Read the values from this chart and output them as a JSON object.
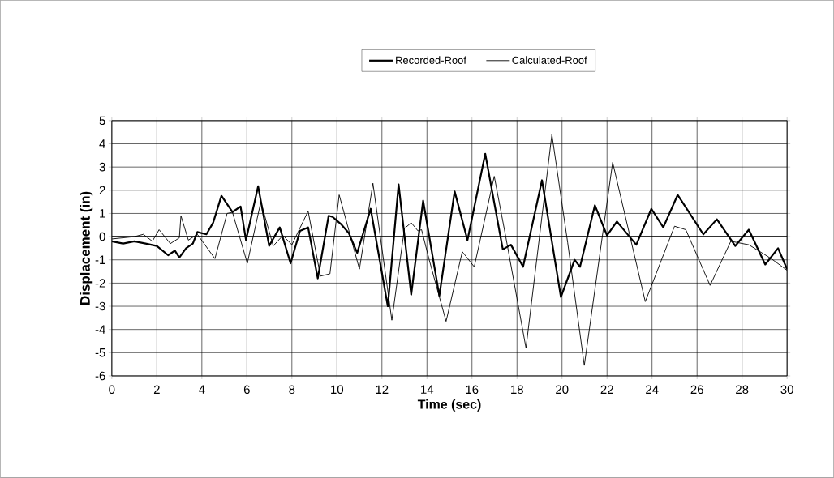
{
  "chart_data": {
    "type": "line",
    "xlabel": "Time (sec)",
    "ylabel": "Displacement (in)",
    "xlim": [
      0,
      30
    ],
    "xticks": [
      0,
      2,
      4,
      6,
      8,
      10,
      12,
      14,
      16,
      18,
      20,
      22,
      24,
      26,
      28,
      30
    ],
    "ylim": [
      -6,
      5
    ],
    "yticks": [
      -6,
      -5,
      -4,
      -3,
      -2,
      -1,
      0,
      1,
      2,
      3,
      4,
      5
    ],
    "grid": true,
    "legend": "top",
    "marker": "none",
    "line_style": "solid",
    "ref_lines": [
      {
        "axis": "y",
        "value": 0,
        "color": "#000000"
      }
    ],
    "series": [
      {
        "name": "Recorded-Roof",
        "color": "#000000",
        "x": [
          0,
          0.5,
          1,
          1.5,
          2,
          2.5,
          2.8,
          3,
          3.3,
          3.6,
          3.8,
          4.2,
          4.5,
          4.87,
          5.36,
          5.72,
          5.96,
          6.5,
          6.99,
          7.46,
          7.94,
          8.36,
          8.72,
          9.15,
          9.63,
          9.81,
          10.17,
          10.53,
          10.9,
          11.5,
          12.26,
          12.74,
          13.3,
          13.83,
          14.55,
          15.23,
          15.8,
          16.59,
          17.37,
          17.73,
          18.27,
          19.11,
          19.95,
          20.56,
          20.8,
          21.46,
          22.0,
          22.44,
          23.3,
          23.97,
          24.5,
          25.14,
          26.28,
          26.88,
          27.7,
          28.3,
          29.03,
          29.6,
          30
        ],
        "values": [
          -0.2,
          -0.3,
          -0.2,
          -0.3,
          -0.4,
          -0.8,
          -0.6,
          -0.9,
          -0.5,
          -0.3,
          0.2,
          0.1,
          0.6,
          1.76,
          1.06,
          1.3,
          -0.15,
          2.17,
          -0.4,
          0.4,
          -1.15,
          0.25,
          0.4,
          -1.8,
          0.9,
          0.85,
          0.55,
          0.15,
          -0.7,
          1.2,
          -3.0,
          2.25,
          -2.5,
          1.55,
          -2.55,
          1.95,
          -0.15,
          3.57,
          -0.55,
          -0.35,
          -1.3,
          2.43,
          -2.6,
          -1.0,
          -1.3,
          1.35,
          0.05,
          0.65,
          -0.35,
          1.2,
          0.4,
          1.8,
          0.1,
          0.75,
          -0.4,
          0.3,
          -1.2,
          -0.5,
          -1.4
        ]
      },
      {
        "name": "Calculated-Roof",
        "color": "#000000",
        "x": [
          0,
          1,
          1.4,
          1.8,
          2.1,
          2.6,
          3.0,
          3.07,
          3.4,
          3.8,
          4.58,
          5.12,
          5.36,
          6.02,
          6.62,
          7.17,
          7.6,
          8.0,
          8.72,
          9.27,
          9.69,
          10.1,
          11.0,
          11.6,
          12.44,
          13.0,
          13.3,
          13.6,
          13.76,
          14.1,
          14.85,
          15.57,
          16.1,
          16.99,
          17.5,
          18.4,
          19.55,
          20.25,
          20.99,
          22.25,
          23.7,
          25.0,
          25.5,
          26.58,
          27.5,
          28.3,
          29.3,
          30
        ],
        "values": [
          -0.1,
          0.0,
          0.1,
          -0.2,
          0.3,
          -0.3,
          -0.05,
          0.9,
          -0.15,
          0.1,
          -0.95,
          1.0,
          1.05,
          -1.15,
          1.5,
          -0.4,
          0.05,
          -0.35,
          1.1,
          -1.7,
          -1.6,
          1.8,
          -1.4,
          2.3,
          -3.6,
          0.35,
          0.6,
          0.25,
          0.3,
          -1.0,
          -3.65,
          -0.65,
          -1.3,
          2.6,
          0.0,
          -4.8,
          4.4,
          -0.25,
          -5.55,
          3.2,
          -2.8,
          0.45,
          0.3,
          -2.1,
          -0.2,
          -0.35,
          -0.95,
          -1.45
        ]
      }
    ]
  }
}
